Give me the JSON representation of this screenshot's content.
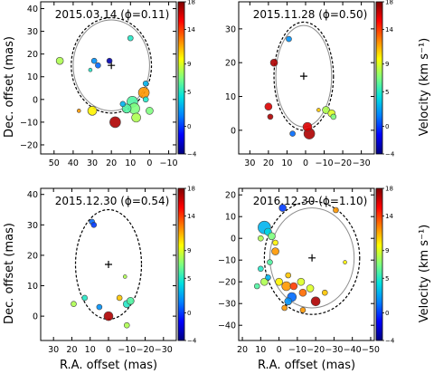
{
  "figure": {
    "ylabel": "Dec. offset (mas)",
    "xlabel": "R.A. offset (mas)",
    "colorbar_label": "Velocity (km s⁻¹)",
    "colorbar_ticks": [
      -4,
      0,
      5,
      9,
      14,
      18
    ],
    "colormap": [
      "#00007f",
      "#0000ff",
      "#0080ff",
      "#00e0e0",
      "#7fff7f",
      "#ffff00",
      "#ff8000",
      "#ff0000",
      "#7f0000"
    ]
  },
  "chart_data": [
    {
      "type": "scatter",
      "title": "2015.03.14 (ϕ=0.11)",
      "xlim": [
        57,
        -14
      ],
      "ylim": [
        -24,
        43
      ],
      "xticks": [
        50,
        40,
        30,
        20,
        10,
        0,
        -10
      ],
      "yticks": [
        -20,
        -10,
        0,
        10,
        20,
        30,
        40
      ],
      "center": [
        20,
        15
      ],
      "circle_solid_radius": 20,
      "circle_dashed_radius": 21,
      "points": [
        {
          "x": 47,
          "y": 17,
          "v": 8,
          "s": 4
        },
        {
          "x": 29,
          "y": 17,
          "v": 2,
          "s": 3
        },
        {
          "x": 27,
          "y": 15,
          "v": 1,
          "s": 3
        },
        {
          "x": 31,
          "y": 13,
          "v": 5,
          "s": 2
        },
        {
          "x": 21,
          "y": 17,
          "v": -3,
          "s": 3
        },
        {
          "x": 10,
          "y": 27,
          "v": 5,
          "s": 3
        },
        {
          "x": 2,
          "y": 7,
          "v": 3,
          "s": 3
        },
        {
          "x": 3,
          "y": 3,
          "v": 12,
          "s": 6
        },
        {
          "x": 37,
          "y": -5,
          "v": 12,
          "s": 2
        },
        {
          "x": 30,
          "y": -5,
          "v": 10,
          "s": 5
        },
        {
          "x": 18,
          "y": -10,
          "v": 17,
          "s": 6
        },
        {
          "x": 12,
          "y": -4,
          "v": 6,
          "s": 5
        },
        {
          "x": 9,
          "y": -1,
          "v": 6,
          "s": 6
        },
        {
          "x": 8,
          "y": -4,
          "v": 7,
          "s": 6
        },
        {
          "x": 7,
          "y": -8,
          "v": 8,
          "s": 5
        },
        {
          "x": 14,
          "y": -2,
          "v": 3,
          "s": 3
        },
        {
          "x": 2,
          "y": 0,
          "v": 5,
          "s": 3
        },
        {
          "x": 0,
          "y": -5,
          "v": 7,
          "s": 4
        }
      ]
    },
    {
      "type": "scatter",
      "title": "2015.11.28 (ϕ=0.50)",
      "xlim": [
        36,
        -37
      ],
      "ylim": [
        -7,
        38
      ],
      "xticks": [
        30,
        20,
        10,
        0,
        -10,
        -20,
        -30
      ],
      "yticks": [
        0,
        10,
        20,
        30
      ],
      "center": [
        1,
        16
      ],
      "circle_solid_radius": 15,
      "circle_dashed_radius": 16,
      "points": [
        {
          "x": 9,
          "y": 27,
          "v": 2,
          "s": 3
        },
        {
          "x": 17,
          "y": 20,
          "v": 17,
          "s": 4
        },
        {
          "x": 20,
          "y": 7,
          "v": 16,
          "s": 4
        },
        {
          "x": 19,
          "y": 4,
          "v": 17,
          "s": 3
        },
        {
          "x": 7,
          "y": -1,
          "v": 1,
          "s": 3
        },
        {
          "x": -1,
          "y": 1,
          "v": 16,
          "s": 5
        },
        {
          "x": -2,
          "y": -1,
          "v": 17,
          "s": 6
        },
        {
          "x": -11,
          "y": 6,
          "v": 8,
          "s": 4
        },
        {
          "x": -14,
          "y": 5,
          "v": 9,
          "s": 4
        },
        {
          "x": -15,
          "y": 4,
          "v": 7,
          "s": 3
        },
        {
          "x": -7,
          "y": 6,
          "v": 11,
          "s": 2
        }
      ]
    },
    {
      "type": "scatter",
      "title": "2015.12.30 (ϕ=0.54)",
      "xlim": [
        37,
        -37
      ],
      "ylim": [
        -8,
        42
      ],
      "xticks": [
        30,
        20,
        10,
        0,
        -10,
        -20,
        -30
      ],
      "yticks": [
        0,
        10,
        20,
        30,
        40
      ],
      "center": [
        0,
        17
      ],
      "circle_dashed_radius": 18,
      "points": [
        {
          "x": 9,
          "y": 31,
          "v": 1,
          "s": 3
        },
        {
          "x": 8,
          "y": 30,
          "v": 0,
          "s": 3
        },
        {
          "x": 19,
          "y": 4,
          "v": 8,
          "s": 3
        },
        {
          "x": 13,
          "y": 6,
          "v": 5,
          "s": 3
        },
        {
          "x": 5,
          "y": 3,
          "v": 2,
          "s": 3
        },
        {
          "x": 0,
          "y": 0,
          "v": 17,
          "s": 5
        },
        {
          "x": -6,
          "y": 6,
          "v": 11,
          "s": 3
        },
        {
          "x": -10,
          "y": 4,
          "v": 5,
          "s": 4
        },
        {
          "x": -12,
          "y": 5,
          "v": 6,
          "s": 4
        },
        {
          "x": -10,
          "y": -3,
          "v": 8,
          "s": 3
        },
        {
          "x": -9,
          "y": 13,
          "v": 8,
          "s": 2
        }
      ]
    },
    {
      "type": "scatter",
      "title": "2016.12.30 (ϕ=1.10)",
      "xlim": [
        22,
        -52
      ],
      "ylim": [
        -47,
        23
      ],
      "xticks": [
        20,
        10,
        0,
        -10,
        -20,
        -30,
        -40,
        -50
      ],
      "yticks": [
        -40,
        -30,
        -20,
        -10,
        0,
        10,
        20
      ],
      "center": [
        -18,
        -9
      ],
      "circle_solid_radius": 23,
      "circle_dashed_radius": 26,
      "points": [
        {
          "x": -2,
          "y": 14,
          "v": 0,
          "s": 4
        },
        {
          "x": -31,
          "y": 13,
          "v": 12,
          "s": 3
        },
        {
          "x": 8,
          "y": 5,
          "v": 3,
          "s": 7
        },
        {
          "x": 6,
          "y": 3,
          "v": 4,
          "s": 4
        },
        {
          "x": 4,
          "y": 1,
          "v": 7,
          "s": 4
        },
        {
          "x": 10,
          "y": 0,
          "v": 8,
          "s": 3
        },
        {
          "x": 2,
          "y": -2,
          "v": 10,
          "s": 3
        },
        {
          "x": 2,
          "y": -6,
          "v": 12,
          "s": 4
        },
        {
          "x": 5,
          "y": -11,
          "v": 6,
          "s": 3
        },
        {
          "x": 10,
          "y": -14,
          "v": 5,
          "s": 3
        },
        {
          "x": 8,
          "y": -20,
          "v": 8,
          "s": 4
        },
        {
          "x": 12,
          "y": -22,
          "v": 6,
          "s": 3
        },
        {
          "x": 6,
          "y": -18,
          "v": 3,
          "s": 3
        },
        {
          "x": 0,
          "y": -20,
          "v": 10,
          "s": 4
        },
        {
          "x": -4,
          "y": -22,
          "v": 12,
          "s": 5
        },
        {
          "x": -8,
          "y": -22,
          "v": 14,
          "s": 4
        },
        {
          "x": -12,
          "y": -20,
          "v": 9,
          "s": 4
        },
        {
          "x": -5,
          "y": -17,
          "v": 11,
          "s": 3
        },
        {
          "x": -7,
          "y": -27,
          "v": 1,
          "s": 5
        },
        {
          "x": -5,
          "y": -29,
          "v": 2,
          "s": 4
        },
        {
          "x": -13,
          "y": -25,
          "v": 13,
          "s": 4
        },
        {
          "x": -17,
          "y": -23,
          "v": 9,
          "s": 4
        },
        {
          "x": -20,
          "y": -29,
          "v": 17,
          "s": 5
        },
        {
          "x": -25,
          "y": -25,
          "v": 11,
          "s": 3
        },
        {
          "x": -3,
          "y": -32,
          "v": 12,
          "s": 3
        },
        {
          "x": -13,
          "y": -33,
          "v": 12,
          "s": 3
        },
        {
          "x": -36,
          "y": -11,
          "v": 10,
          "s": 2
        }
      ]
    }
  ]
}
